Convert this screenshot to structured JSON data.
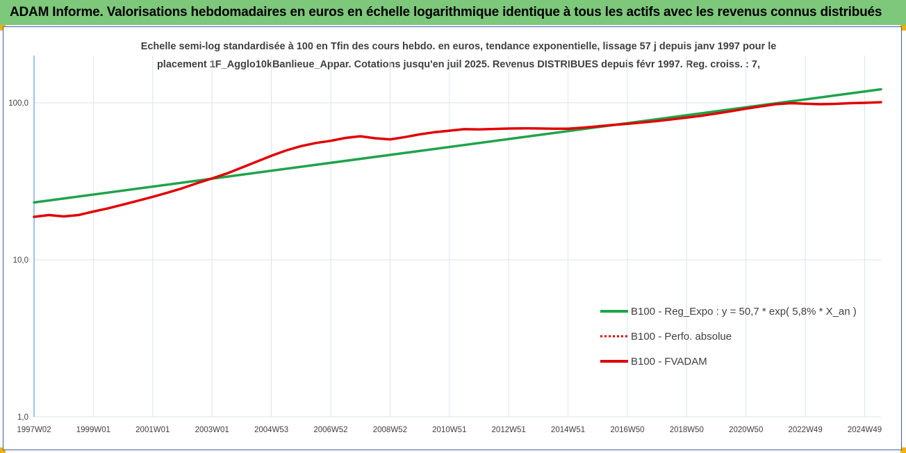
{
  "header": {
    "title": "ADAM Informe. Valorisations hebdomadaires en euros en échelle logarithmique identique à tous les actifs avec les revenus connus distribués"
  },
  "chart_data": {
    "type": "line",
    "title_lines": [
      "Echelle semi-log standardisée à 100 en Tfin des cours hebdo. en euros, tendance exponentielle, lissage 57 j depuis janv 1997 pour le",
      "placement 1F_Agglo10kBanlieue_Appar. Cotations jusqu'en juil 2025. Revenus DISTRIBUES depuis févr 1997. Reg. croiss. : 7,"
    ],
    "y_scale": "log",
    "ylim": [
      1,
      200
    ],
    "y_ticks": [
      {
        "value": 1,
        "label": "1,0"
      },
      {
        "value": 10,
        "label": "10,0"
      },
      {
        "value": 100,
        "label": "100,0"
      }
    ],
    "x_unit": "year",
    "xlim": [
      1997.0,
      2025.55
    ],
    "x_ticks": [
      {
        "x": 1997.0,
        "label": "1997W02"
      },
      {
        "x": 1999.0,
        "label": "1999W01"
      },
      {
        "x": 2001.0,
        "label": "2001W01"
      },
      {
        "x": 2003.0,
        "label": "2003W01"
      },
      {
        "x": 2005.0,
        "label": "2004W53"
      },
      {
        "x": 2007.0,
        "label": "2006W52"
      },
      {
        "x": 2009.0,
        "label": "2008W52"
      },
      {
        "x": 2011.0,
        "label": "2010W51"
      },
      {
        "x": 2013.0,
        "label": "2012W51"
      },
      {
        "x": 2015.0,
        "label": "2014W51"
      },
      {
        "x": 2017.0,
        "label": "2016W50"
      },
      {
        "x": 2019.0,
        "label": "2018W50"
      },
      {
        "x": 2021.0,
        "label": "2020W50"
      },
      {
        "x": 2023.0,
        "label": "2022W49"
      },
      {
        "x": 2025.0,
        "label": "2024W49"
      }
    ],
    "grid": "vertical and horizontal",
    "legend_position": "right-middle",
    "series": [
      {
        "name": "B100 - Reg_Expo : y = 50,7 * exp( 5,8% *  X_an )",
        "color": "#1fa34a",
        "style": "solid",
        "x": [
          1997.0,
          2025.55
        ],
        "y": [
          23.2,
          122
        ]
      },
      {
        "name": "B100 - Perfo. absolue",
        "color": "#e00000",
        "style": "dotted",
        "x": [],
        "y": []
      },
      {
        "name": "B100 - FVADAM",
        "color": "#e00000",
        "style": "solid",
        "x": [
          1997.0,
          1997.5,
          1998.0,
          1998.5,
          1999.0,
          1999.5,
          2000.0,
          2000.5,
          2001.0,
          2001.5,
          2002.0,
          2002.5,
          2003.0,
          2003.5,
          2004.0,
          2004.5,
          2005.0,
          2005.5,
          2006.0,
          2006.5,
          2007.0,
          2007.5,
          2008.0,
          2008.5,
          2009.0,
          2009.5,
          2010.0,
          2010.5,
          2011.0,
          2011.5,
          2012.0,
          2012.5,
          2013.0,
          2013.5,
          2014.0,
          2014.5,
          2015.0,
          2015.5,
          2016.0,
          2016.5,
          2017.0,
          2017.5,
          2018.0,
          2018.5,
          2019.0,
          2019.5,
          2020.0,
          2020.5,
          2021.0,
          2021.5,
          2022.0,
          2022.5,
          2023.0,
          2023.5,
          2024.0,
          2024.5,
          2025.0,
          2025.55
        ],
        "y": [
          18.8,
          19.3,
          18.9,
          19.3,
          20.3,
          21.3,
          22.5,
          23.8,
          25.2,
          26.8,
          28.6,
          30.8,
          33.0,
          35.5,
          38.7,
          42.2,
          46.0,
          49.8,
          53.0,
          55.5,
          57.3,
          59.8,
          61.3,
          59.5,
          58.5,
          60.5,
          63.0,
          65.0,
          66.5,
          68.0,
          67.8,
          68.2,
          68.6,
          68.8,
          68.7,
          68.5,
          68.5,
          69.5,
          70.8,
          72.3,
          73.5,
          75.0,
          76.5,
          78.5,
          80.5,
          82.8,
          85.5,
          88.5,
          91.8,
          95.0,
          98.0,
          99.5,
          98.8,
          98.0,
          98.5,
          99.5,
          100.0,
          101.0
        ]
      }
    ]
  }
}
